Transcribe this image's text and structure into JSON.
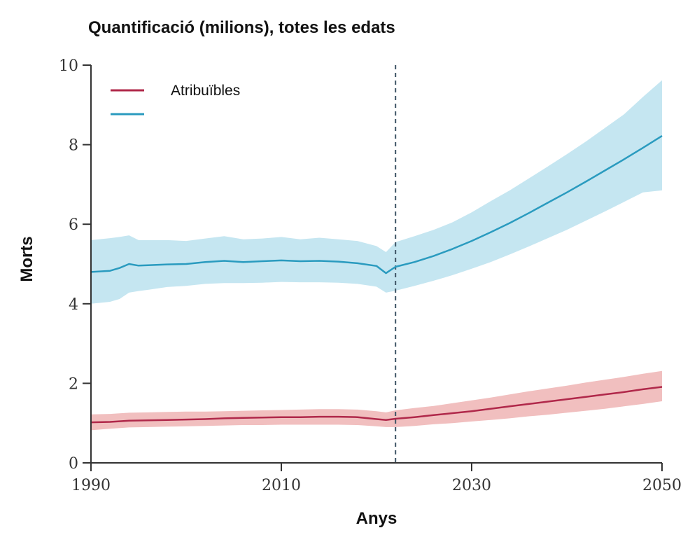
{
  "chart_data": {
    "type": "line",
    "title": "Quantificació (milions), totes les edats",
    "xlabel": "Anys",
    "ylabel": "Morts",
    "xlim": [
      1990,
      2050
    ],
    "ylim": [
      0,
      10
    ],
    "x_ticks": [
      1990,
      2010,
      2030,
      2050
    ],
    "x_tick_labels": [
      "1990",
      "2010",
      "2030",
      "2050"
    ],
    "y_ticks": [
      0,
      2,
      4,
      6,
      8,
      10
    ],
    "y_tick_labels": [
      "0",
      "2",
      "4",
      "6",
      "8",
      "10"
    ],
    "forecast_start": 2022,
    "grid": false,
    "legend_position": "top-left",
    "series": [
      {
        "name": "Atribuïbles",
        "color": "#b0284a",
        "band_color": "#efb8b8",
        "x": [
          1990,
          1992,
          1994,
          1996,
          1998,
          2000,
          2002,
          2004,
          2006,
          2008,
          2010,
          2012,
          2014,
          2016,
          2018,
          2020,
          2021,
          2022,
          2024,
          2026,
          2028,
          2030,
          2032,
          2034,
          2036,
          2038,
          2040,
          2042,
          2044,
          2046,
          2048,
          2050
        ],
        "values": [
          1.02,
          1.03,
          1.06,
          1.07,
          1.08,
          1.09,
          1.1,
          1.12,
          1.13,
          1.14,
          1.15,
          1.15,
          1.16,
          1.16,
          1.15,
          1.1,
          1.08,
          1.11,
          1.15,
          1.2,
          1.25,
          1.3,
          1.36,
          1.42,
          1.48,
          1.54,
          1.6,
          1.66,
          1.72,
          1.78,
          1.85,
          1.91
        ],
        "lower": [
          0.82,
          0.86,
          0.89,
          0.9,
          0.91,
          0.92,
          0.93,
          0.94,
          0.95,
          0.95,
          0.96,
          0.96,
          0.96,
          0.96,
          0.95,
          0.92,
          0.9,
          0.9,
          0.93,
          0.97,
          1.0,
          1.04,
          1.08,
          1.12,
          1.17,
          1.21,
          1.26,
          1.31,
          1.36,
          1.42,
          1.48,
          1.55
        ],
        "upper": [
          1.22,
          1.23,
          1.26,
          1.27,
          1.28,
          1.29,
          1.29,
          1.3,
          1.31,
          1.32,
          1.33,
          1.34,
          1.35,
          1.35,
          1.34,
          1.3,
          1.27,
          1.32,
          1.38,
          1.43,
          1.5,
          1.57,
          1.64,
          1.72,
          1.8,
          1.87,
          1.94,
          2.02,
          2.09,
          2.16,
          2.24,
          2.31
        ]
      },
      {
        "name": "",
        "color": "#2a9bbf",
        "band_color": "#bfe3f0",
        "x": [
          1990,
          1992,
          1993,
          1994,
          1995,
          1996,
          1998,
          2000,
          2002,
          2004,
          2006,
          2008,
          2010,
          2012,
          2014,
          2016,
          2018,
          2020,
          2021,
          2022,
          2024,
          2026,
          2028,
          2030,
          2032,
          2034,
          2036,
          2038,
          2040,
          2042,
          2044,
          2046,
          2048,
          2050
        ],
        "values": [
          4.8,
          4.83,
          4.9,
          5.0,
          4.96,
          4.97,
          4.99,
          5.0,
          5.05,
          5.08,
          5.05,
          5.07,
          5.09,
          5.07,
          5.08,
          5.06,
          5.02,
          4.95,
          4.77,
          4.93,
          5.05,
          5.2,
          5.38,
          5.58,
          5.8,
          6.03,
          6.28,
          6.54,
          6.8,
          7.07,
          7.35,
          7.63,
          7.92,
          8.22
        ],
        "lower": [
          4.0,
          4.05,
          4.12,
          4.28,
          4.32,
          4.35,
          4.42,
          4.45,
          4.5,
          4.52,
          4.52,
          4.53,
          4.55,
          4.54,
          4.54,
          4.53,
          4.5,
          4.43,
          4.28,
          4.33,
          4.45,
          4.58,
          4.72,
          4.88,
          5.05,
          5.24,
          5.44,
          5.65,
          5.86,
          6.09,
          6.32,
          6.56,
          6.8,
          6.85
        ],
        "upper": [
          5.6,
          5.65,
          5.68,
          5.72,
          5.6,
          5.6,
          5.6,
          5.58,
          5.64,
          5.7,
          5.62,
          5.64,
          5.68,
          5.62,
          5.66,
          5.62,
          5.58,
          5.45,
          5.3,
          5.55,
          5.7,
          5.86,
          6.05,
          6.3,
          6.58,
          6.85,
          7.15,
          7.45,
          7.76,
          8.08,
          8.42,
          8.76,
          9.2,
          9.62
        ]
      }
    ]
  }
}
